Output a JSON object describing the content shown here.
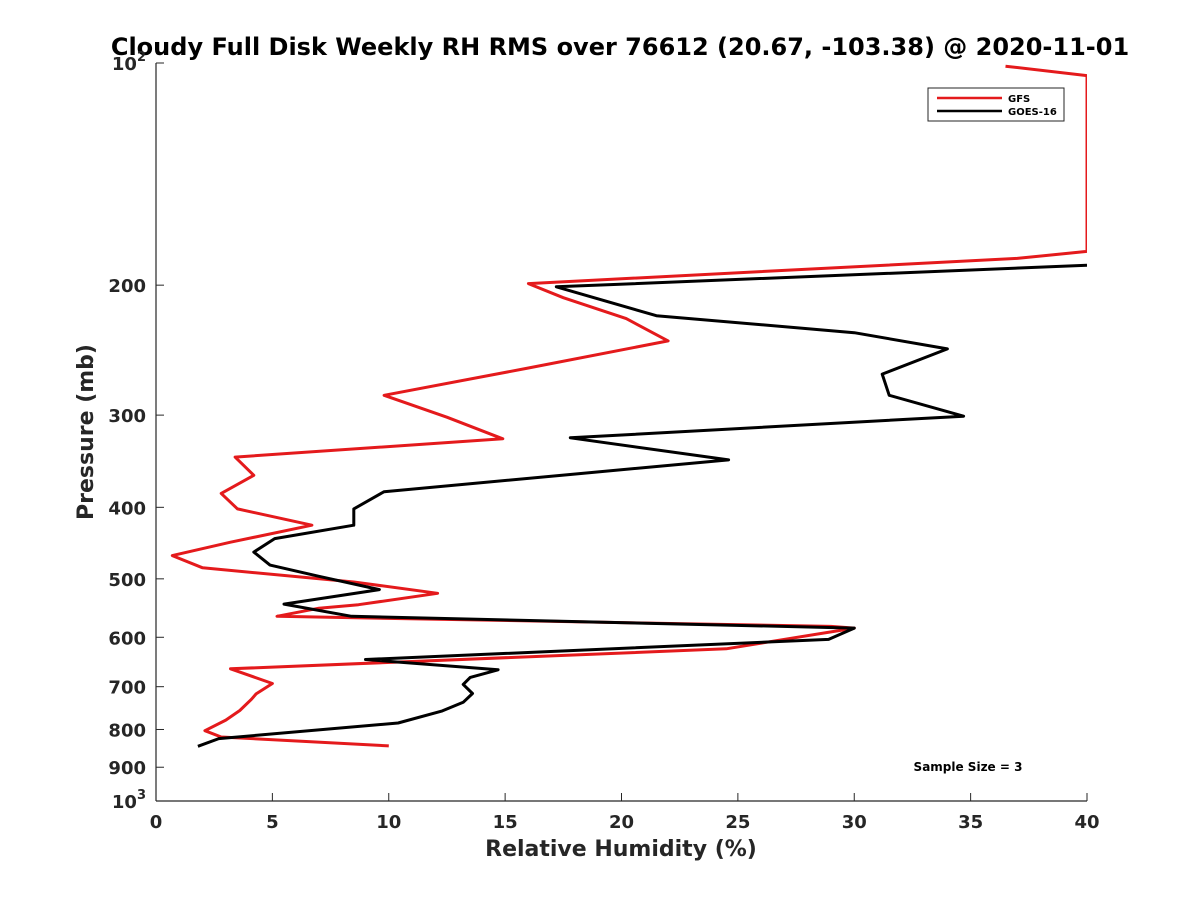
{
  "chart_data": {
    "type": "line",
    "title": "Cloudy Full Disk Weekly RH RMS over 76612 (20.67, -103.38) @ 2020-11-01",
    "xlabel": "Relative Humidity (%)",
    "ylabel": "Pressure (mb)",
    "xlim": [
      0,
      40
    ],
    "ylim": [
      100,
      1000
    ],
    "yscale": "log",
    "y_reversed": true,
    "x_ticks": [
      {
        "value": 0,
        "label": "0"
      },
      {
        "value": 5,
        "label": "5"
      },
      {
        "value": 10,
        "label": "10"
      },
      {
        "value": 15,
        "label": "15"
      },
      {
        "value": 20,
        "label": "20"
      },
      {
        "value": 25,
        "label": "25"
      },
      {
        "value": 30,
        "label": "30"
      },
      {
        "value": 35,
        "label": "35"
      },
      {
        "value": 40,
        "label": "40"
      }
    ],
    "y_ticks": [
      {
        "value": 100,
        "base": "10",
        "exp": "2"
      },
      {
        "value": 200,
        "label": "200"
      },
      {
        "value": 300,
        "label": "300"
      },
      {
        "value": 400,
        "label": "400"
      },
      {
        "value": 500,
        "label": "500"
      },
      {
        "value": 600,
        "label": "600"
      },
      {
        "value": 700,
        "label": "700"
      },
      {
        "value": 800,
        "label": "800"
      },
      {
        "value": 900,
        "label": "900"
      },
      {
        "value": 1000,
        "base": "10",
        "exp": "3"
      }
    ],
    "legend_position": "top-right",
    "annotation": "Sample Size = 3",
    "grid": false,
    "series": [
      {
        "name": "GFS",
        "color": "#e41a1c",
        "points": [
          [
            36.5,
            101
          ],
          [
            40,
            104
          ],
          [
            40,
            180
          ],
          [
            37,
            184
          ],
          [
            16,
            199
          ],
          [
            17.5,
            208
          ],
          [
            20.2,
            222
          ],
          [
            22,
            238
          ],
          [
            16,
            259
          ],
          [
            9.8,
            282
          ],
          [
            12.5,
            302
          ],
          [
            14.9,
            323
          ],
          [
            3.4,
            342
          ],
          [
            4.2,
            362
          ],
          [
            2.8,
            383
          ],
          [
            3.5,
            402
          ],
          [
            6.7,
            423
          ],
          [
            3.2,
            446
          ],
          [
            0.7,
            465
          ],
          [
            2.0,
            483
          ],
          [
            8.5,
            505
          ],
          [
            12.1,
            523
          ],
          [
            8.7,
            542
          ],
          [
            7.0,
            548
          ],
          [
            5.2,
            562
          ],
          [
            29,
            580
          ],
          [
            30,
            583
          ],
          [
            24.5,
            622
          ],
          [
            3.2,
            662
          ],
          [
            5.0,
            693
          ],
          [
            4.3,
            716
          ],
          [
            4.1,
            728
          ],
          [
            3.6,
            754
          ],
          [
            3.0,
            777
          ],
          [
            2.1,
            803
          ],
          [
            2.8,
            819
          ],
          [
            10.0,
            842
          ]
        ]
      },
      {
        "name": "GOES-16",
        "color": "#000000",
        "points": [
          [
            40,
            188
          ],
          [
            17.2,
            201
          ],
          [
            21.5,
            220
          ],
          [
            30,
            232
          ],
          [
            34,
            244
          ],
          [
            31.2,
            264
          ],
          [
            31.5,
            282
          ],
          [
            34.7,
            301
          ],
          [
            17.8,
            322
          ],
          [
            24.6,
            345
          ],
          [
            18.2,
            360
          ],
          [
            9.8,
            381
          ],
          [
            8.5,
            402
          ],
          [
            8.5,
            423
          ],
          [
            5.1,
            441
          ],
          [
            4.2,
            460
          ],
          [
            4.9,
            479
          ],
          [
            7.0,
            496
          ],
          [
            9.6,
            517
          ],
          [
            5.5,
            541
          ],
          [
            8.4,
            562
          ],
          [
            30,
            583
          ],
          [
            28.9,
            604
          ],
          [
            9.0,
            643
          ],
          [
            14.7,
            664
          ],
          [
            13.5,
            680
          ],
          [
            13.2,
            695
          ],
          [
            13.6,
            715
          ],
          [
            13.2,
            735
          ],
          [
            12.3,
            755
          ],
          [
            10.4,
            784
          ],
          [
            2.7,
            823
          ],
          [
            1.8,
            843
          ]
        ]
      }
    ]
  }
}
